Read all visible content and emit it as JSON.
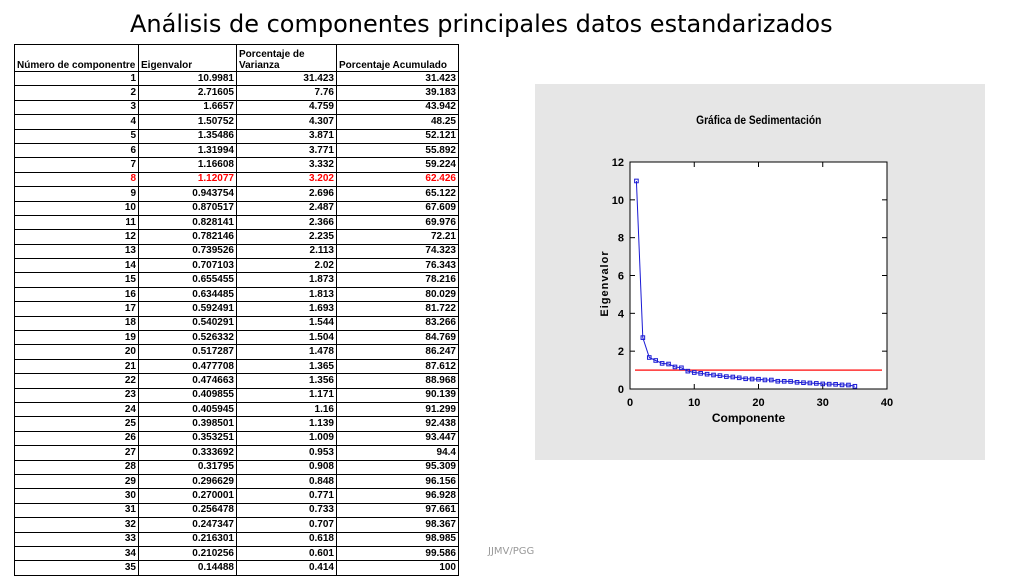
{
  "title": "Análisis de componentes principales datos estandarizados",
  "footer": "JJMV/PGG",
  "table": {
    "headers": [
      "Número de componentre",
      "Eigenvalor",
      "Porcentaje de Varianza",
      "Porcentaje Acumulado"
    ],
    "highlight_row": 8,
    "highlight_color": "#ff0000",
    "rows": [
      [
        "1",
        "10.9981",
        "31.423",
        "31.423"
      ],
      [
        "2",
        "2.71605",
        "7.76",
        "39.183"
      ],
      [
        "3",
        "1.6657",
        "4.759",
        "43.942"
      ],
      [
        "4",
        "1.50752",
        "4.307",
        "48.25"
      ],
      [
        "5",
        "1.35486",
        "3.871",
        "52.121"
      ],
      [
        "6",
        "1.31994",
        "3.771",
        "55.892"
      ],
      [
        "7",
        "1.16608",
        "3.332",
        "59.224"
      ],
      [
        "8",
        "1.12077",
        "3.202",
        "62.426"
      ],
      [
        "9",
        "0.943754",
        "2.696",
        "65.122"
      ],
      [
        "10",
        "0.870517",
        "2.487",
        "67.609"
      ],
      [
        "11",
        "0.828141",
        "2.366",
        "69.976"
      ],
      [
        "12",
        "0.782146",
        "2.235",
        "72.21"
      ],
      [
        "13",
        "0.739526",
        "2.113",
        "74.323"
      ],
      [
        "14",
        "0.707103",
        "2.02",
        "76.343"
      ],
      [
        "15",
        "0.655455",
        "1.873",
        "78.216"
      ],
      [
        "16",
        "0.634485",
        "1.813",
        "80.029"
      ],
      [
        "17",
        "0.592491",
        "1.693",
        "81.722"
      ],
      [
        "18",
        "0.540291",
        "1.544",
        "83.266"
      ],
      [
        "19",
        "0.526332",
        "1.504",
        "84.769"
      ],
      [
        "20",
        "0.517287",
        "1.478",
        "86.247"
      ],
      [
        "21",
        "0.477708",
        "1.365",
        "87.612"
      ],
      [
        "22",
        "0.474663",
        "1.356",
        "88.968"
      ],
      [
        "23",
        "0.409855",
        "1.171",
        "90.139"
      ],
      [
        "24",
        "0.405945",
        "1.16",
        "91.299"
      ],
      [
        "25",
        "0.398501",
        "1.139",
        "92.438"
      ],
      [
        "26",
        "0.353251",
        "1.009",
        "93.447"
      ],
      [
        "27",
        "0.333692",
        "0.953",
        "94.4"
      ],
      [
        "28",
        "0.31795",
        "0.908",
        "95.309"
      ],
      [
        "29",
        "0.296629",
        "0.848",
        "96.156"
      ],
      [
        "30",
        "0.270001",
        "0.771",
        "96.928"
      ],
      [
        "31",
        "0.256478",
        "0.733",
        "97.661"
      ],
      [
        "32",
        "0.247347",
        "0.707",
        "98.367"
      ],
      [
        "33",
        "0.216301",
        "0.618",
        "98.985"
      ],
      [
        "34",
        "0.210256",
        "0.601",
        "99.586"
      ],
      [
        "35",
        "0.14488",
        "0.414",
        "100"
      ]
    ]
  },
  "chart_data": {
    "type": "line",
    "title": "Gráfica de Sedimentación",
    "xlabel": "Componente",
    "ylabel": "Eigenvalor",
    "xlim": [
      0,
      40
    ],
    "ylim": [
      0,
      12
    ],
    "xticks": [
      0,
      10,
      20,
      30,
      40
    ],
    "yticks": [
      0,
      2,
      4,
      6,
      8,
      10,
      12
    ],
    "grid": false,
    "series_color": "#1a1ad4",
    "reference_line": {
      "y": 1,
      "color": "#ff3030"
    },
    "x": [
      1,
      2,
      3,
      4,
      5,
      6,
      7,
      8,
      9,
      10,
      11,
      12,
      13,
      14,
      15,
      16,
      17,
      18,
      19,
      20,
      21,
      22,
      23,
      24,
      25,
      26,
      27,
      28,
      29,
      30,
      31,
      32,
      33,
      34,
      35
    ],
    "y": [
      10.9981,
      2.71605,
      1.6657,
      1.50752,
      1.35486,
      1.31994,
      1.16608,
      1.12077,
      0.943754,
      0.870517,
      0.828141,
      0.782146,
      0.739526,
      0.707103,
      0.655455,
      0.634485,
      0.592491,
      0.540291,
      0.526332,
      0.517287,
      0.477708,
      0.474663,
      0.409855,
      0.405945,
      0.398501,
      0.353251,
      0.333692,
      0.31795,
      0.296629,
      0.270001,
      0.256478,
      0.247347,
      0.216301,
      0.210256,
      0.14488
    ]
  }
}
